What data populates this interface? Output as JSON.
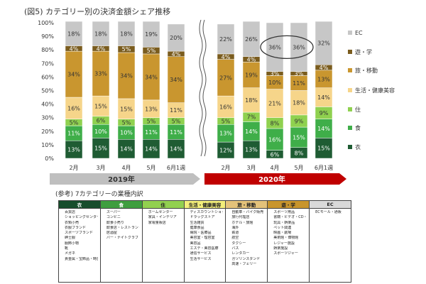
{
  "page_title": "(図5) カテゴリー別の決済金額シェア推移",
  "reference_title": "(参考) 7カテゴリーの業種内訳",
  "colors": {
    "衣": "#1f5c33",
    "食": "#3fae49",
    "住": "#8fd14f",
    "生活・健康美容": "#f6d58a",
    "旅・移動": "#c9962f",
    "遊・学": "#7a5c1e",
    "EC": "#c7c7c7",
    "year_2019": "#bfbfbf",
    "year_2020": "#c00000"
  },
  "chart_data": {
    "type": "bar",
    "stacked": true,
    "categories": [
      "2月",
      "3月",
      "4月",
      "5月",
      "6月1週",
      "2月",
      "3月",
      "4月",
      "5月",
      "6月1週"
    ],
    "year_groups": [
      {
        "label": "2019年",
        "start": 0,
        "end": 4
      },
      {
        "label": "2020年",
        "start": 5,
        "end": 9
      }
    ],
    "series": [
      {
        "name": "衣",
        "values": [
          13,
          15,
          14,
          14,
          14,
          12,
          13,
          6,
          8,
          15
        ]
      },
      {
        "name": "食",
        "values": [
          11,
          10,
          10,
          11,
          11,
          13,
          14,
          16,
          15,
          14
        ]
      },
      {
        "name": "住",
        "values": [
          5,
          6,
          5,
          5,
          5,
          5,
          7,
          8,
          9,
          9
        ]
      },
      {
        "name": "生活・健康美容",
        "values": [
          16,
          15,
          15,
          13,
          11,
          16,
          18,
          21,
          18,
          14
        ]
      },
      {
        "name": "旅・移動",
        "values": [
          34,
          33,
          34,
          34,
          34,
          27,
          19,
          10,
          11,
          13
        ]
      },
      {
        "name": "遊・学",
        "values": [
          4,
          4,
          5,
          5,
          4,
          4,
          4,
          3,
          3,
          4
        ]
      },
      {
        "name": "EC",
        "values": [
          18,
          18,
          18,
          19,
          20,
          22,
          26,
          36,
          36,
          32
        ]
      }
    ],
    "ylim": [
      0,
      100
    ],
    "ytick_labels": [
      "0%",
      "10%",
      "20%",
      "30%",
      "40%",
      "50%",
      "60%",
      "70%",
      "80%",
      "90%",
      "100%"
    ],
    "grid": false,
    "legend": "right",
    "annotation": "circle around EC 36% in 2020 4月 and 5月"
  },
  "reference_table": [
    {
      "header": "衣",
      "items": [
        "百貨店",
        "ショッピングセンター",
        "衣類小売",
        "衣服ブランド",
        "スポーツブランド",
        "紳士服",
        "服飾小物",
        "靴",
        "メガネ",
        "貴金属・宝飾品・時計"
      ]
    },
    {
      "header": "食",
      "items": [
        "スーパー",
        "コンビニ",
        "飲食小売り",
        "飲食店・レストラン・カフェ",
        "居酒屋",
        "バー・ナイトクラブ"
      ]
    },
    {
      "header": "住",
      "items": [
        "ホームセンター",
        "家具・インテリア",
        "家電量販店"
      ]
    },
    {
      "header": "生活・健康美容",
      "items": [
        "ディスカウントショップ",
        "ドラッグストア",
        "生活雑貨",
        "健康食品",
        "病院・医療品",
        "美容室・理容室",
        "美容品",
        "エステ・美容医療",
        "通信サービス",
        "生活サービス"
      ]
    },
    {
      "header": "旅・移動",
      "items": [
        "自動車・バイク販売",
        "旅行代理店",
        "ホテル・旅館",
        "海外",
        "鉄道",
        "航空",
        "タクシー",
        "バス",
        "レンタカー",
        "ガソリンスタンド",
        "高速・フェリー"
      ]
    },
    {
      "header": "遊・学",
      "items": [
        "スポーツ用品",
        "書籍・ビデオ・CD・楽器",
        "玩具・娯楽品",
        "ペット関連",
        "映画・劇場",
        "美術館・博物館",
        "レジャー施設",
        "娯楽施設",
        "スポーツジャー"
      ]
    },
    {
      "header": "EC",
      "items": [
        "ECモール・通販"
      ]
    }
  ]
}
